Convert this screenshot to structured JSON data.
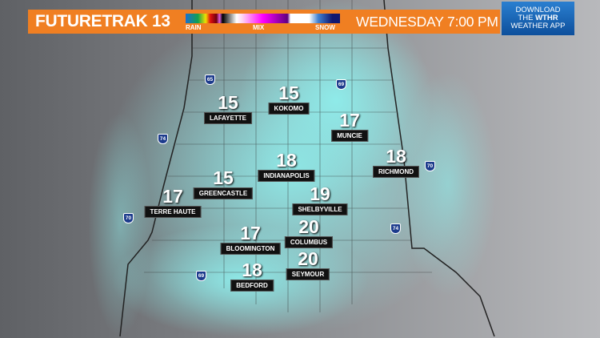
{
  "header": {
    "title": "FUTURETRAK 13",
    "legend": {
      "rain": "RAIN",
      "mix": "MIX",
      "snow": "SNOW"
    },
    "time": "WEDNESDAY 7:00 PM"
  },
  "app_promo": {
    "line1": "DOWNLOAD",
    "line2a": "THE ",
    "line2b": "WTHR",
    "line3": "WEATHER APP"
  },
  "cities": [
    {
      "name": "LAFAYETTE",
      "temp": "15"
    },
    {
      "name": "KOKOMO",
      "temp": "15"
    },
    {
      "name": "MUNCIE",
      "temp": "17"
    },
    {
      "name": "RICHMOND",
      "temp": "18"
    },
    {
      "name": "INDIANAPOLIS",
      "temp": "18"
    },
    {
      "name": "GREENCASTLE",
      "temp": "15"
    },
    {
      "name": "TERRE HAUTE",
      "temp": "17"
    },
    {
      "name": "SHELBYVILLE",
      "temp": "19"
    },
    {
      "name": "COLUMBUS",
      "temp": "20"
    },
    {
      "name": "BLOOMINGTON",
      "temp": "17"
    },
    {
      "name": "SEYMOUR",
      "temp": "20"
    },
    {
      "name": "BEDFORD",
      "temp": "18"
    }
  ],
  "interstates": [
    "65",
    "69",
    "74",
    "70",
    "70",
    "74",
    "69"
  ],
  "colors": {
    "banner": "#f07f22",
    "snow_cover": "#7fe6e6",
    "app_button": "#1a63b5"
  }
}
